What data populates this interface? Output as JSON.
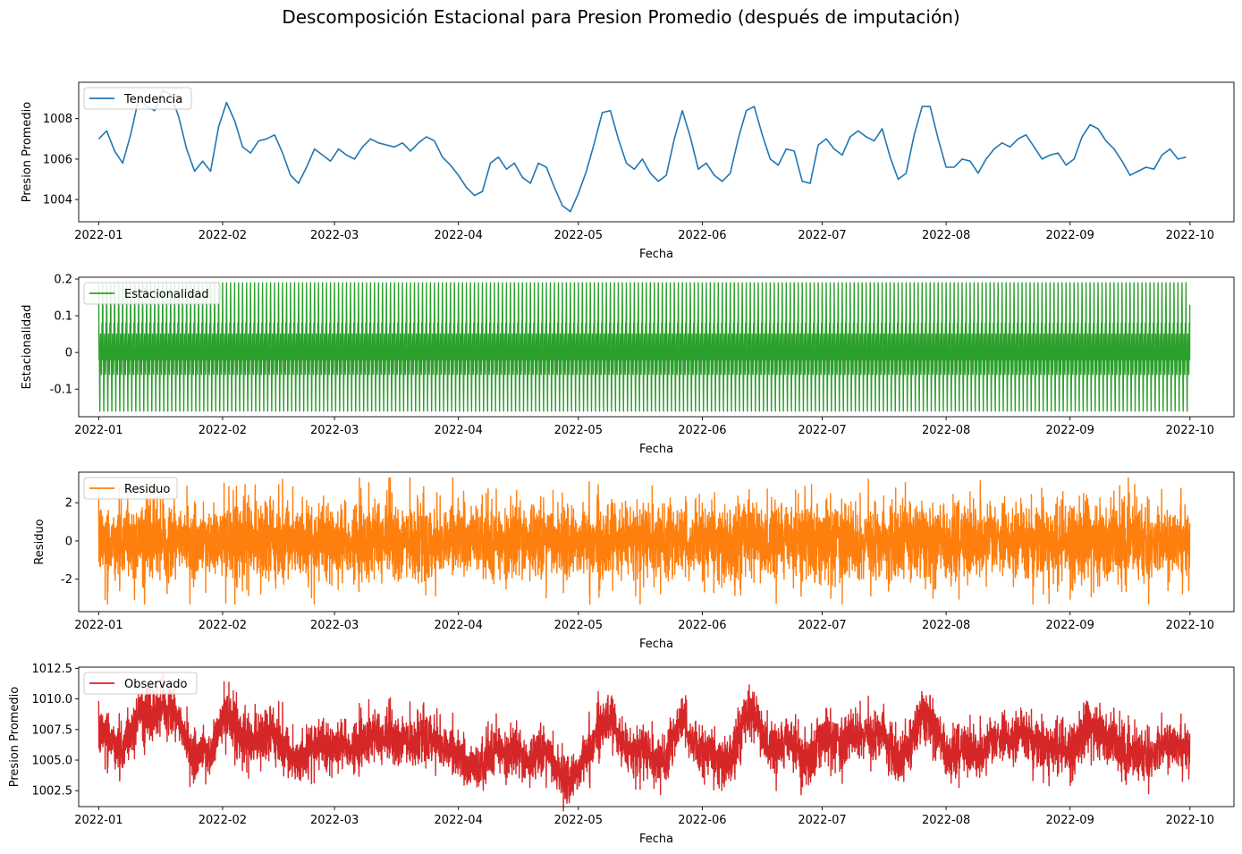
{
  "figure": {
    "title": "Descomposición Estacional para Presion Promedio (después de imputación)"
  },
  "chart_data": [
    {
      "type": "line",
      "key": "tendencia",
      "ylabel": "Presion Promedio",
      "xlabel": "Fecha",
      "legend": {
        "label": "Tendencia",
        "placement": "top-left"
      },
      "color": "#1f77b4",
      "xlim": [
        "2021-12-27",
        "2022-10-12"
      ],
      "ylim": [
        1002.9,
        1009.8
      ],
      "xticks": [
        "2022-01",
        "2022-02",
        "2022-03",
        "2022-04",
        "2022-05",
        "2022-06",
        "2022-07",
        "2022-08",
        "2022-09",
        "2022-10"
      ],
      "yticks": [
        1004,
        1006,
        1008
      ],
      "x_start": "2022-01-01",
      "x_end": "2022-09-30",
      "series": [
        {
          "name": "Tendencia",
          "x": [
            "2022-01-01",
            "2022-01-03",
            "2022-01-05",
            "2022-01-07",
            "2022-01-09",
            "2022-01-11",
            "2022-01-13",
            "2022-01-15",
            "2022-01-17",
            "2022-01-19",
            "2022-01-21",
            "2022-01-23",
            "2022-01-25",
            "2022-01-27",
            "2022-01-29",
            "2022-01-31",
            "2022-02-02",
            "2022-02-04",
            "2022-02-06",
            "2022-02-08",
            "2022-02-10",
            "2022-02-12",
            "2022-02-14",
            "2022-02-16",
            "2022-02-18",
            "2022-02-20",
            "2022-02-22",
            "2022-02-24",
            "2022-02-26",
            "2022-02-28",
            "2022-03-02",
            "2022-03-04",
            "2022-03-06",
            "2022-03-08",
            "2022-03-10",
            "2022-03-12",
            "2022-03-14",
            "2022-03-16",
            "2022-03-18",
            "2022-03-20",
            "2022-03-22",
            "2022-03-24",
            "2022-03-26",
            "2022-03-28",
            "2022-03-30",
            "2022-04-01",
            "2022-04-03",
            "2022-04-05",
            "2022-04-07",
            "2022-04-09",
            "2022-04-11",
            "2022-04-13",
            "2022-04-15",
            "2022-04-17",
            "2022-04-19",
            "2022-04-21",
            "2022-04-23",
            "2022-04-25",
            "2022-04-27",
            "2022-04-29",
            "2022-05-01",
            "2022-05-03",
            "2022-05-05",
            "2022-05-07",
            "2022-05-09",
            "2022-05-11",
            "2022-05-13",
            "2022-05-15",
            "2022-05-17",
            "2022-05-19",
            "2022-05-21",
            "2022-05-23",
            "2022-05-25",
            "2022-05-27",
            "2022-05-29",
            "2022-05-31",
            "2022-06-02",
            "2022-06-04",
            "2022-06-06",
            "2022-06-08",
            "2022-06-10",
            "2022-06-12",
            "2022-06-14",
            "2022-06-16",
            "2022-06-18",
            "2022-06-20",
            "2022-06-22",
            "2022-06-24",
            "2022-06-26",
            "2022-06-28",
            "2022-06-30",
            "2022-07-02",
            "2022-07-04",
            "2022-07-06",
            "2022-07-08",
            "2022-07-10",
            "2022-07-12",
            "2022-07-14",
            "2022-07-16",
            "2022-07-18",
            "2022-07-20",
            "2022-07-22",
            "2022-07-24",
            "2022-07-26",
            "2022-07-28",
            "2022-07-30",
            "2022-08-01",
            "2022-08-03",
            "2022-08-05",
            "2022-08-07",
            "2022-08-09",
            "2022-08-11",
            "2022-08-13",
            "2022-08-15",
            "2022-08-17",
            "2022-08-19",
            "2022-08-21",
            "2022-08-23",
            "2022-08-25",
            "2022-08-27",
            "2022-08-29",
            "2022-08-31",
            "2022-09-02",
            "2022-09-04",
            "2022-09-06",
            "2022-09-08",
            "2022-09-10",
            "2022-09-12",
            "2022-09-14",
            "2022-09-16",
            "2022-09-18",
            "2022-09-20",
            "2022-09-22",
            "2022-09-24",
            "2022-09-26",
            "2022-09-28",
            "2022-09-30"
          ],
          "y": [
            1007.0,
            1007.4,
            1006.4,
            1005.8,
            1007.2,
            1009.0,
            1008.6,
            1008.4,
            1009.4,
            1009.2,
            1008.1,
            1006.5,
            1005.4,
            1005.9,
            1005.4,
            1007.6,
            1008.8,
            1007.9,
            1006.6,
            1006.3,
            1006.9,
            1007.0,
            1007.2,
            1006.3,
            1005.2,
            1004.8,
            1005.6,
            1006.5,
            1006.2,
            1005.9,
            1006.5,
            1006.2,
            1006.0,
            1006.6,
            1007.0,
            1006.8,
            1006.7,
            1006.6,
            1006.8,
            1006.4,
            1006.8,
            1007.1,
            1006.9,
            1006.1,
            1005.7,
            1005.2,
            1004.6,
            1004.2,
            1004.4,
            1005.8,
            1006.1,
            1005.5,
            1005.8,
            1005.1,
            1004.8,
            1005.8,
            1005.6,
            1004.6,
            1003.7,
            1003.4,
            1004.3,
            1005.4,
            1006.8,
            1008.3,
            1008.4,
            1007.0,
            1005.8,
            1005.5,
            1006.0,
            1005.3,
            1004.9,
            1005.2,
            1007.0,
            1008.4,
            1007.1,
            1005.5,
            1005.8,
            1005.2,
            1004.9,
            1005.3,
            1007.0,
            1008.4,
            1008.6,
            1007.2,
            1006.0,
            1005.7,
            1006.5,
            1006.4,
            1004.9,
            1004.8,
            1006.7,
            1007.0,
            1006.5,
            1006.2,
            1007.1,
            1007.4,
            1007.1,
            1006.9,
            1007.5,
            1006.1,
            1005.0,
            1005.3,
            1007.2,
            1008.6,
            1008.6,
            1007.0,
            1005.6,
            1005.6,
            1006.0,
            1005.9,
            1005.3,
            1006.0,
            1006.5,
            1006.8,
            1006.6,
            1007.0,
            1007.2,
            1006.6,
            1006.0,
            1006.2,
            1006.3,
            1005.7,
            1006.0,
            1007.1,
            1007.7,
            1007.5,
            1006.9,
            1006.5,
            1005.9,
            1005.2,
            1005.4,
            1005.6,
            1005.5,
            1006.2,
            1006.5,
            1006.0,
            1006.1
          ],
          "y_points_note": ""
        }
      ]
    },
    {
      "type": "line",
      "key": "estacionalidad",
      "ylabel": "Estacionalidad",
      "xlabel": "Fecha",
      "legend": {
        "label": "Estacionalidad",
        "placement": "top-left"
      },
      "color": "#2ca02c",
      "xlim": [
        "2021-12-27",
        "2022-10-12"
      ],
      "ylim": [
        -0.175,
        0.205
      ],
      "xticks": [
        "2022-01",
        "2022-02",
        "2022-03",
        "2022-04",
        "2022-05",
        "2022-06",
        "2022-07",
        "2022-08",
        "2022-09",
        "2022-10"
      ],
      "yticks": [
        -0.1,
        0.0,
        0.1,
        0.2
      ],
      "x_start": "2022-01-01",
      "x_end": "2022-10-01",
      "period_days": 1,
      "seasonal_cycle": [
        0.19,
        0.12,
        0.03,
        -0.02,
        0.01,
        -0.04,
        -0.12,
        -0.16,
        -0.09,
        -0.03,
        0.02,
        0.05,
        0.0,
        -0.05,
        -0.02,
        0.01,
        -0.03,
        -0.06,
        -0.01,
        0.04,
        0.08,
        0.03,
        -0.02,
        0.13
      ],
      "series": [
        {
          "name": "Estacionalidad"
        }
      ]
    },
    {
      "type": "line",
      "key": "residuo",
      "ylabel": "Residuo",
      "xlabel": "Fecha",
      "legend": {
        "label": "Residuo",
        "placement": "top-left"
      },
      "color": "#ff7f0e",
      "xlim": [
        "2021-12-27",
        "2022-10-12"
      ],
      "ylim": [
        -3.7,
        3.6
      ],
      "xticks": [
        "2022-01",
        "2022-02",
        "2022-03",
        "2022-04",
        "2022-05",
        "2022-06",
        "2022-07",
        "2022-08",
        "2022-09",
        "2022-10"
      ],
      "yticks": [
        -2,
        0,
        2
      ],
      "x_start": "2022-01-01",
      "x_end": "2022-09-30",
      "range_observed": [
        -3.3,
        3.3
      ],
      "series": [
        {
          "name": "Residuo"
        }
      ]
    },
    {
      "type": "line",
      "key": "observado",
      "ylabel": "Presion Promedio",
      "xlabel": "Fecha",
      "legend": {
        "label": "Observado",
        "placement": "top-left"
      },
      "color": "#d62728",
      "xlim": [
        "2021-12-27",
        "2022-10-12"
      ],
      "ylim": [
        1001.2,
        1012.6
      ],
      "xticks": [
        "2022-01",
        "2022-02",
        "2022-03",
        "2022-04",
        "2022-05",
        "2022-06",
        "2022-07",
        "2022-08",
        "2022-09",
        "2022-10"
      ],
      "yticks": [
        "1002.5",
        "1005.0",
        "1007.5",
        "1010.0",
        "1012.5"
      ],
      "x_start": "2022-01-01",
      "x_end": "2022-10-01",
      "range_observed": [
        1001.5,
        1012.3
      ],
      "series": [
        {
          "name": "Observado"
        }
      ]
    }
  ]
}
